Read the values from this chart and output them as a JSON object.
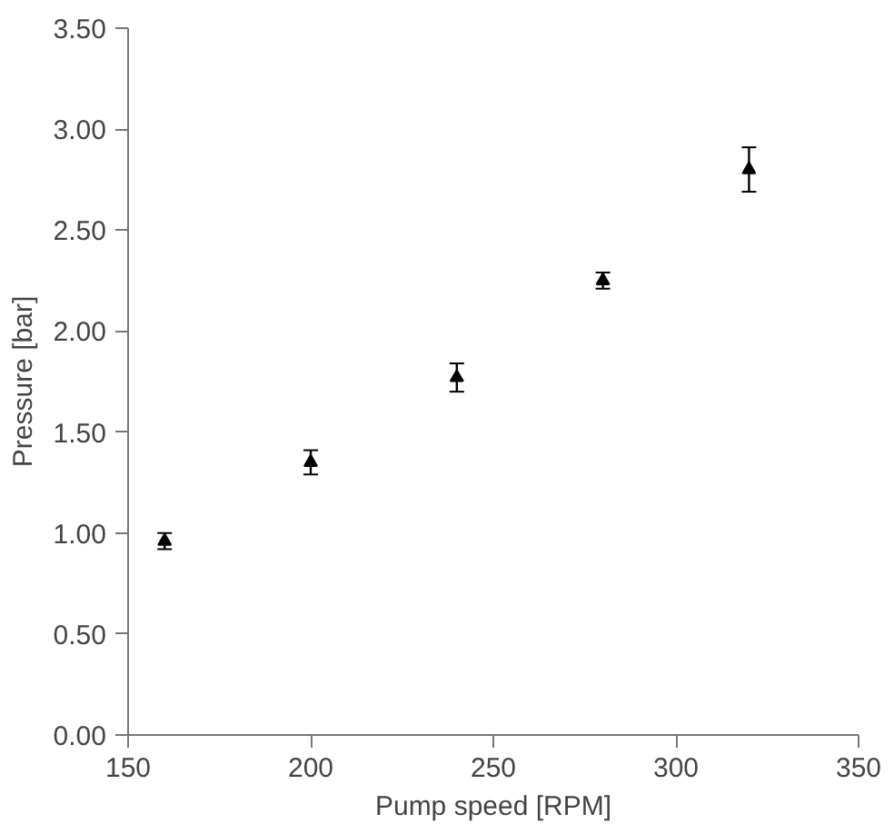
{
  "chart_data": {
    "type": "scatter",
    "xlabel": "Pump speed [RPM]",
    "ylabel": "Pressure [bar]",
    "x": [
      160,
      200,
      240,
      280,
      320
    ],
    "series": [
      {
        "color": "#000000",
        "values": [
          0.96,
          1.35,
          1.77,
          2.25,
          2.8
        ],
        "errors": [
          0.04,
          0.06,
          0.07,
          0.04,
          0.11
        ]
      }
    ],
    "xlim": [
      150,
      350
    ],
    "xticks": [
      150,
      200,
      250,
      300,
      350
    ],
    "ylim": [
      0,
      3.5
    ],
    "yticks": [
      {
        "value": 0,
        "label": "0.00"
      },
      {
        "value": 0.5,
        "label": "0.50"
      },
      {
        "value": 1,
        "label": "1.00"
      },
      {
        "value": 1.5,
        "label": "1.50"
      },
      {
        "value": 2,
        "label": "2.00"
      },
      {
        "value": 2.5,
        "label": "2.50"
      },
      {
        "value": 3,
        "label": "3.00"
      },
      {
        "value": 3.5,
        "label": "3.50"
      }
    ],
    "marker": "triangle",
    "grid": false
  }
}
